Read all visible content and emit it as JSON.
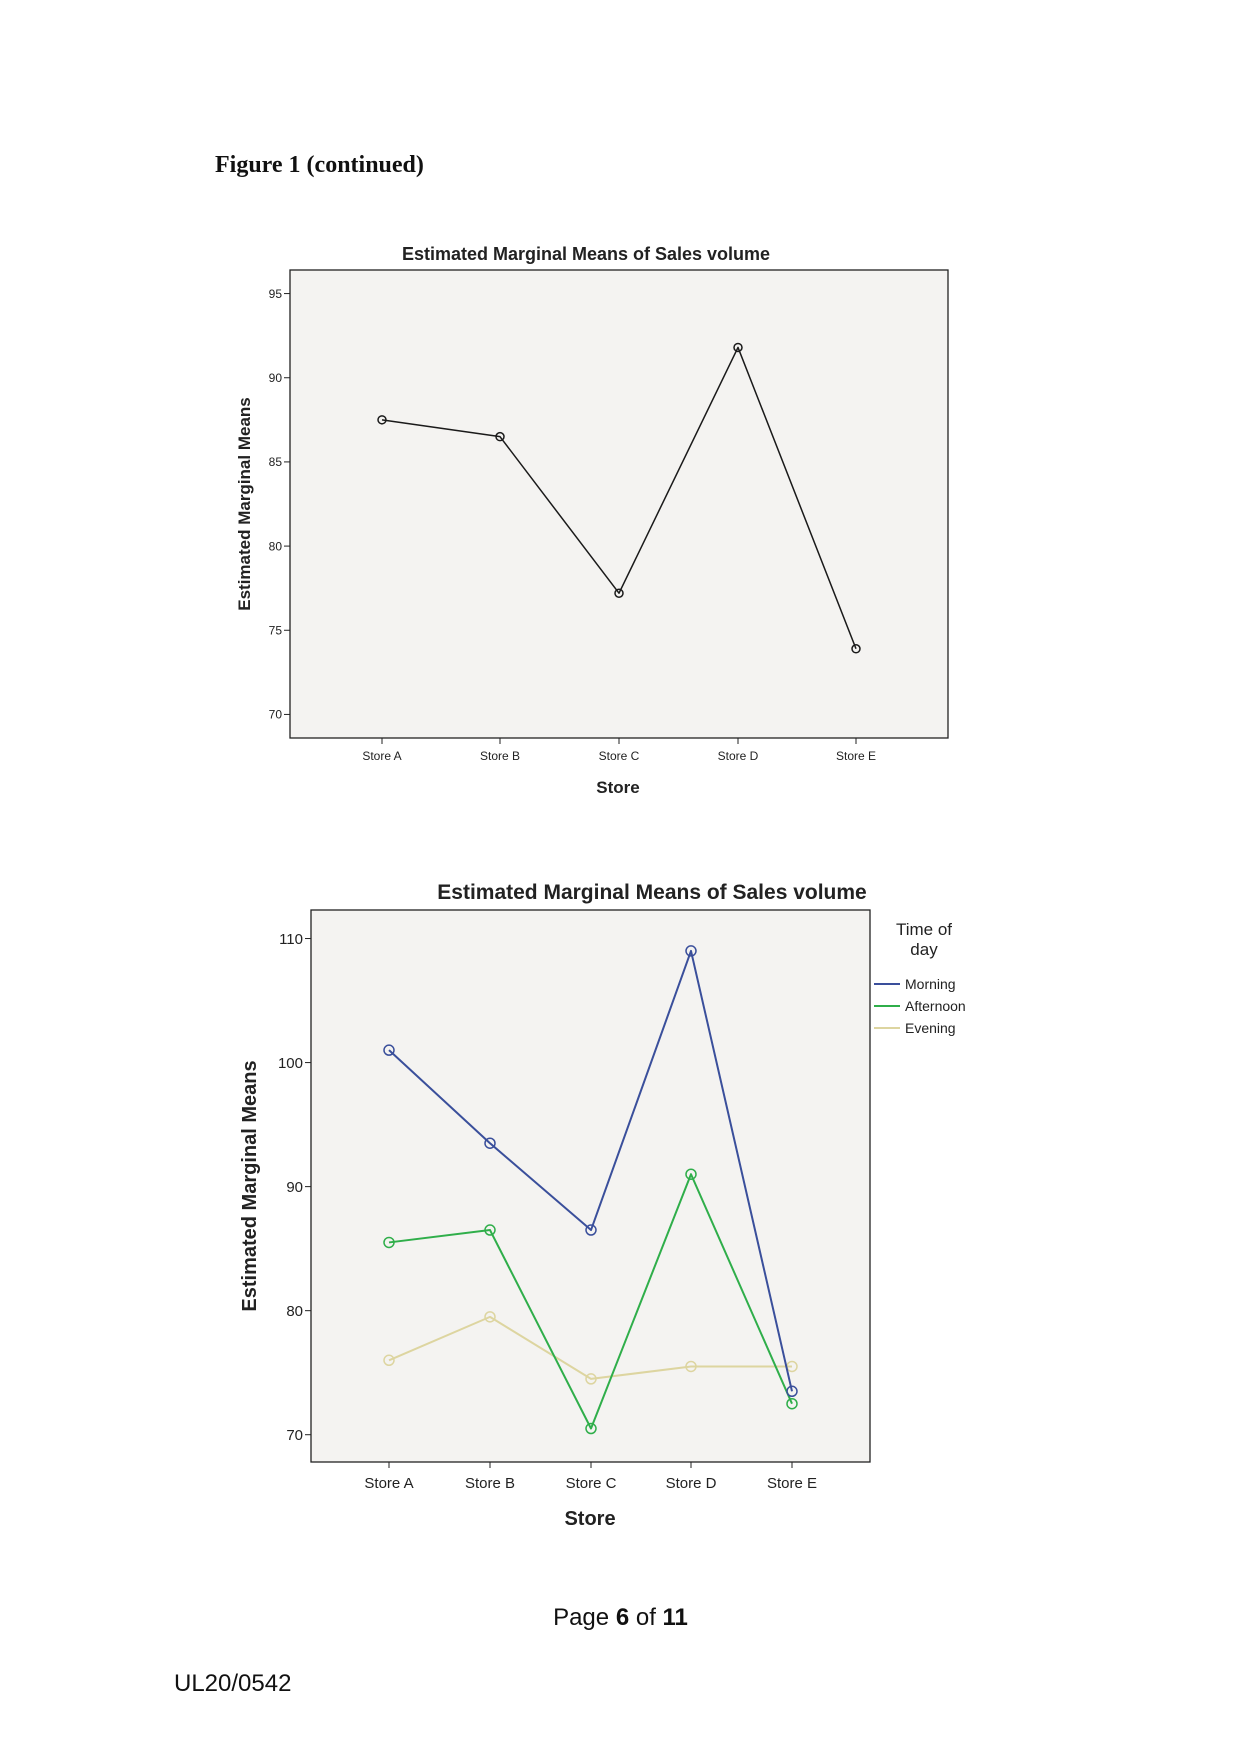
{
  "figure_heading": "Figure 1 (continued)",
  "page": {
    "prefix": "Page",
    "current": "6",
    "middle": "of",
    "total": "11"
  },
  "doc_code": "UL20/0542",
  "colors": {
    "plot_background": "#f4f3f1",
    "single_series": "#1a1a1a",
    "morning": "#3a4f9b",
    "afternoon": "#2fae4a",
    "evening": "#ddd5a0"
  },
  "chart_data": [
    {
      "type": "line",
      "title": "Estimated Marginal Means of Sales volume",
      "xlabel": "Store",
      "ylabel": "Estimated Marginal Means",
      "categories": [
        "Store A",
        "Store B",
        "Store C",
        "Store D",
        "Store E"
      ],
      "yticks": [
        70,
        75,
        80,
        85,
        90,
        95
      ],
      "ylim": [
        68.6,
        96.4
      ],
      "grid": false,
      "legend": null,
      "series": [
        {
          "color": "#1a1a1a",
          "values": [
            87.5,
            86.5,
            77.2,
            91.8,
            73.9
          ]
        }
      ]
    },
    {
      "type": "line",
      "title": "Estimated Marginal Means of Sales volume",
      "xlabel": "Store",
      "ylabel": "Estimated Marginal Means",
      "categories": [
        "Store A",
        "Store B",
        "Store C",
        "Store D",
        "Store E"
      ],
      "yticks": [
        70,
        80,
        90,
        100,
        110
      ],
      "ylim": [
        67.8,
        112.3
      ],
      "grid": false,
      "legend": {
        "title_lines": [
          "Time of",
          "day"
        ],
        "position": "right"
      },
      "series": [
        {
          "name": "Morning",
          "color": "#3a4f9b",
          "values": [
            101.0,
            93.5,
            86.5,
            109.0,
            73.5
          ]
        },
        {
          "name": "Afternoon",
          "color": "#2fae4a",
          "values": [
            85.5,
            86.5,
            70.5,
            91.0,
            72.5
          ]
        },
        {
          "name": "Evening",
          "color": "#ddd5a0",
          "values": [
            76.0,
            79.5,
            74.5,
            75.5,
            75.5
          ]
        }
      ]
    }
  ]
}
